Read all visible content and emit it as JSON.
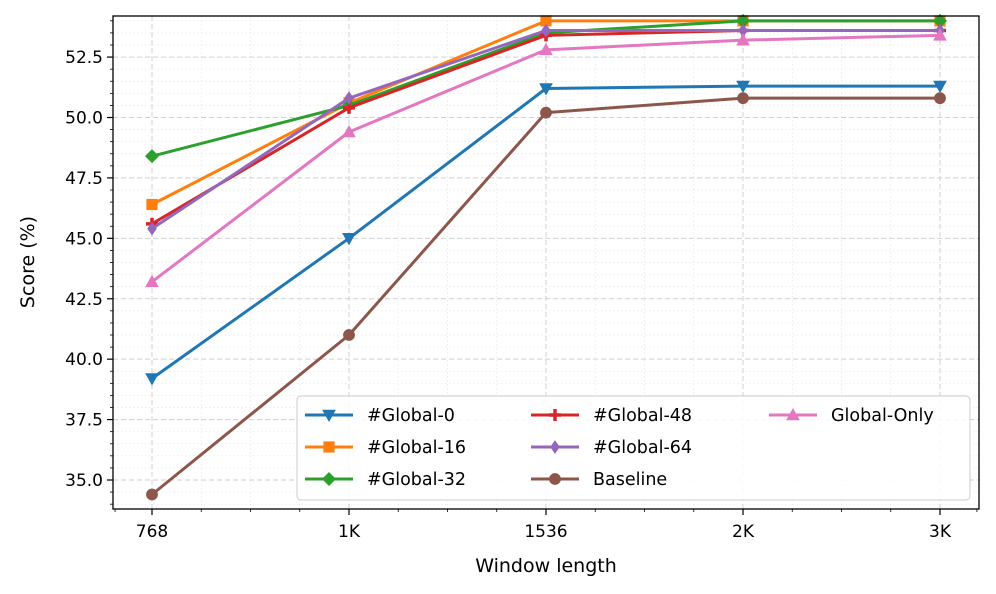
{
  "chart_data": {
    "type": "line",
    "title": "",
    "xlabel": "Window length",
    "ylabel": "Score (%)",
    "categories": [
      "768",
      "1K",
      "1536",
      "2K",
      "3K"
    ],
    "ylim": [
      33.8,
      54.2
    ],
    "yticks": [
      35.0,
      37.5,
      40.0,
      42.5,
      45.0,
      47.5,
      50.0,
      52.5
    ],
    "yticks_labels": [
      "35.0",
      "37.5",
      "40.0",
      "42.5",
      "45.0",
      "47.5",
      "50.0",
      "52.5"
    ],
    "grid": true,
    "legend_position": "lower-right",
    "legend_columns": 3,
    "series": [
      {
        "name": "#Global-0",
        "color": "#1f77b4",
        "marker": "triangle-down",
        "values": [
          39.2,
          45.0,
          51.2,
          51.3,
          51.3
        ]
      },
      {
        "name": "#Global-16",
        "color": "#ff7f0e",
        "marker": "square",
        "values": [
          46.4,
          50.6,
          54.0,
          54.0,
          54.0
        ]
      },
      {
        "name": "#Global-32",
        "color": "#2ca02c",
        "marker": "diamond",
        "values": [
          48.4,
          50.5,
          53.5,
          54.0,
          54.0
        ]
      },
      {
        "name": "#Global-48",
        "color": "#d62728",
        "marker": "plus",
        "values": [
          45.6,
          50.4,
          53.4,
          53.6,
          53.6
        ]
      },
      {
        "name": "#Global-64",
        "color": "#9467bd",
        "marker": "thin-diamond",
        "values": [
          45.4,
          50.8,
          53.6,
          53.6,
          53.6
        ]
      },
      {
        "name": "Baseline",
        "color": "#8c564b",
        "marker": "circle",
        "values": [
          34.4,
          41.0,
          50.2,
          50.8,
          50.8
        ]
      },
      {
        "name": "Global-Only",
        "color": "#e377c2",
        "marker": "triangle-up",
        "values": [
          43.2,
          49.4,
          52.8,
          53.2,
          53.4
        ]
      }
    ]
  }
}
